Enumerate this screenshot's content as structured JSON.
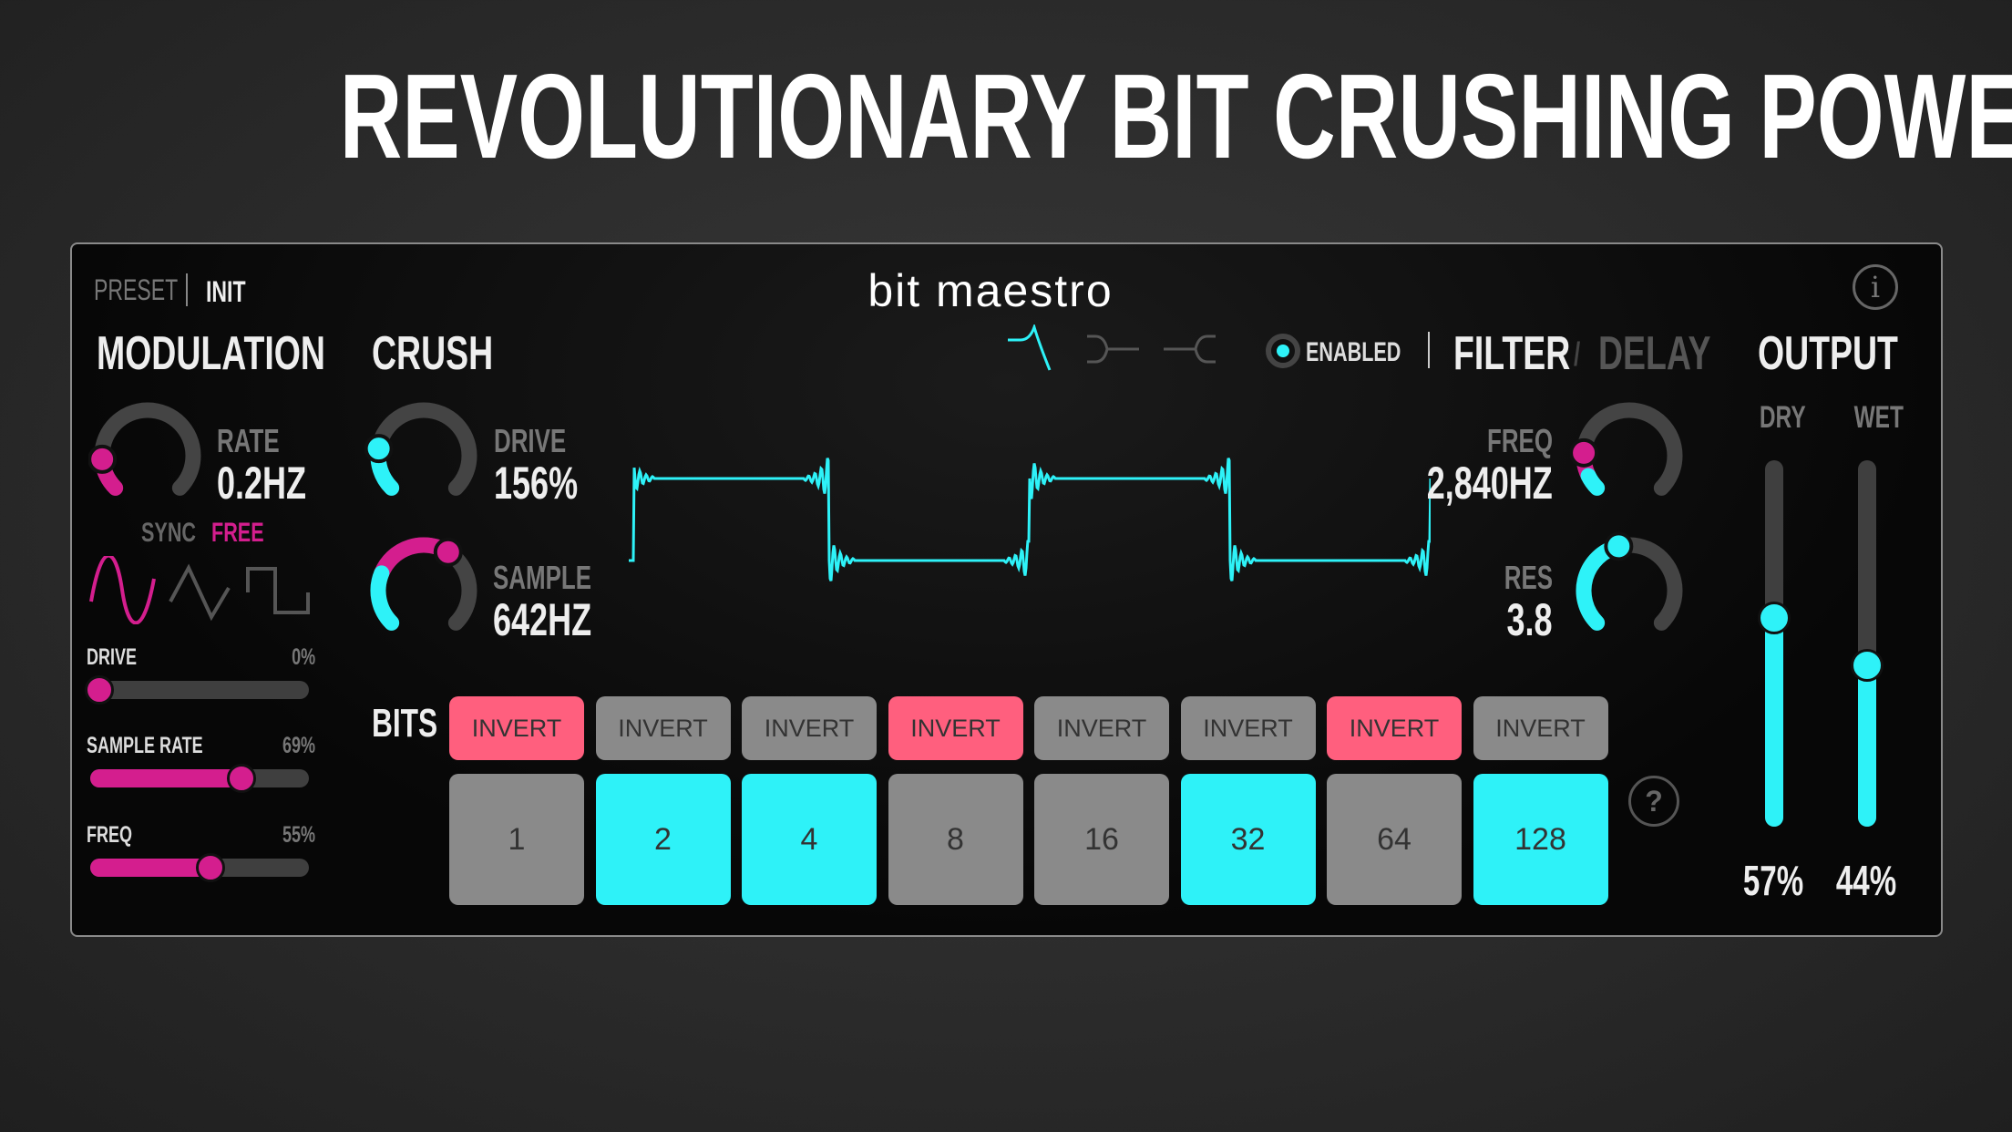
{
  "title": "REVOLUTIONARY BIT CRUSHING POWER",
  "colors": {
    "cyan": "#2ef2f8",
    "pink": "#d41e8e",
    "invert_active": "#ff5f7e",
    "inactive": "#8a8a8a",
    "track": "#444444"
  },
  "header": {
    "preset_label": "PRESET",
    "preset_value": "INIT",
    "logo": "bit maestro",
    "info_icon": "info-icon"
  },
  "modulation": {
    "title": "MODULATION",
    "rate": {
      "label": "RATE",
      "value": "0.2HZ",
      "level": 0.15
    },
    "sync": "SYNC",
    "free": "FREE",
    "mode": "FREE",
    "waveforms": [
      "sine",
      "triangle",
      "square"
    ],
    "selected_waveform": "sine",
    "sliders": [
      {
        "label": "DRIVE",
        "value": "0%",
        "percent": 0
      },
      {
        "label": "SAMPLE RATE",
        "value": "69%",
        "percent": 69
      },
      {
        "label": "FREQ",
        "value": "55%",
        "percent": 55
      }
    ]
  },
  "crush": {
    "title": "CRUSH",
    "drive": {
      "label": "DRIVE",
      "value": "156%",
      "level": 0.2
    },
    "sample": {
      "label": "SAMPLE",
      "value": "642HZ",
      "level": 0.62,
      "mod_level": 0.25
    }
  },
  "filter": {
    "types": [
      "lowpass-peak",
      "bandpass",
      "highpass"
    ],
    "selected_type": "lowpass-peak",
    "enabled_label": "ENABLED",
    "enabled": true,
    "tab_filter": "FILTER",
    "tab_sep": "/",
    "tab_delay": "DELAY",
    "active_tab": "FILTER",
    "freq": {
      "label": "FREQ",
      "value": "2,840HZ",
      "level": 0.18,
      "mod_level": 0.07
    },
    "res": {
      "label": "RES",
      "value": "3.8",
      "level": 0.45
    }
  },
  "output": {
    "title": "OUTPUT",
    "dry": {
      "label": "DRY",
      "value": "57%",
      "percent": 57
    },
    "wet": {
      "label": "WET",
      "value": "44%",
      "percent": 44
    }
  },
  "bits": {
    "label": "BITS",
    "invert_label": "INVERT",
    "help_icon": "?",
    "items": [
      {
        "value": "1",
        "on": false,
        "invert": true
      },
      {
        "value": "2",
        "on": true,
        "invert": false
      },
      {
        "value": "4",
        "on": true,
        "invert": false
      },
      {
        "value": "8",
        "on": false,
        "invert": true
      },
      {
        "value": "16",
        "on": false,
        "invert": false
      },
      {
        "value": "32",
        "on": true,
        "invert": false
      },
      {
        "value": "64",
        "on": false,
        "invert": true
      },
      {
        "value": "128",
        "on": true,
        "invert": false
      }
    ]
  }
}
